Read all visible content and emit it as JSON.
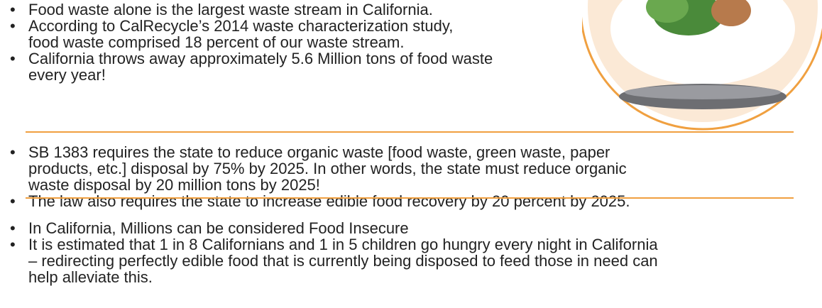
{
  "sections": [
    {
      "bullets": [
        {
          "lines": [
            "Food waste alone is the largest waste stream in California."
          ]
        },
        {
          "lines": [
            "According to CalRecycle’s 2014 waste characterization study,",
            "food waste comprised 18 percent of our waste stream."
          ]
        },
        {
          "lines": [
            "California throws away approximately 5.6 Million tons of food waste",
            "every year!"
          ]
        }
      ]
    },
    {
      "bullets": [
        {
          "lines": [
            "SB 1383 requires the state to reduce organic waste [food waste, green waste, paper",
            "products, etc.] disposal by 75% by 2025.  In other words, the state must reduce organic",
            "waste disposal by 20 million tons by 2025!"
          ]
        },
        {
          "lines": [
            "The law also requires the state to increase edible food recovery by 20 percent by 2025."
          ]
        }
      ]
    },
    {
      "bullets": [
        {
          "lines": [
            "In California, Millions can be considered Food Insecure"
          ]
        },
        {
          "lines": [
            "It is estimated that 1 in 8 Californians and 1 in 5 children go hungry every night in California",
            "– redirecting perfectly edible food that is currently being disposed to feed those in need can",
            "help alleviate this."
          ]
        }
      ]
    }
  ]
}
